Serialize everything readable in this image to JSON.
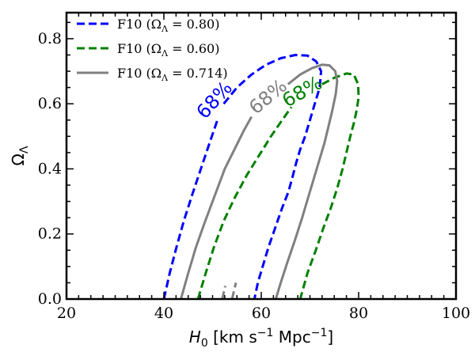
{
  "chart_data": {
    "type": "line",
    "title": "",
    "xlabel_main": "H",
    "xlabel_sub": "0",
    "xlabel_units_pre": " [km s",
    "xlabel_units_exp": "−1",
    "xlabel_units_mid": " Mpc",
    "xlabel_units_post": "]",
    "ylabel_main": "Ω",
    "ylabel_sub": "Λ",
    "xlim": [
      20,
      100
    ],
    "ylim": [
      0,
      0.88
    ],
    "xticks": [
      20,
      40,
      60,
      80,
      100
    ],
    "xtick_labels": [
      "20",
      "40",
      "60",
      "80",
      "100"
    ],
    "yticks": [
      0.0,
      0.2,
      0.4,
      0.6,
      0.8
    ],
    "ytick_labels": [
      "0.0",
      "0.2",
      "0.4",
      "0.6",
      "0.8"
    ],
    "legend_position": "top-left",
    "series": [
      {
        "name": "F10 (ΩΛ = 0.80)",
        "legend_pre": "F10 (Ω",
        "legend_sub": "Λ",
        "legend_post": " = 0.80)",
        "color": "#0000ff",
        "dash": "dashed",
        "contour_label": "68%",
        "contour_label_at": [
          50.5,
          0.61
        ],
        "contour_label_angle": -48,
        "segments": [
          [
            [
              40.0,
              0.0
            ],
            [
              41.2,
              0.08
            ],
            [
              42.6,
              0.16
            ],
            [
              44.1,
              0.24
            ],
            [
              45.8,
              0.32
            ],
            [
              47.6,
              0.4
            ],
            [
              49.4,
              0.48
            ],
            [
              51.0,
              0.55
            ]
          ],
          [
            [
              52.3,
              0.6
            ],
            [
              55.0,
              0.65
            ],
            [
              58.0,
              0.69
            ],
            [
              61.0,
              0.72
            ],
            [
              64.0,
              0.74
            ],
            [
              67.0,
              0.75
            ],
            [
              69.5,
              0.748
            ],
            [
              71.3,
              0.73
            ],
            [
              72.3,
              0.7
            ],
            [
              72.0,
              0.65
            ],
            [
              71.0,
              0.6
            ],
            [
              70.0,
              0.55
            ],
            [
              69.0,
              0.5
            ],
            [
              68.0,
              0.46
            ],
            [
              67.2,
              0.42
            ],
            [
              66.5,
              0.38
            ],
            [
              65.6,
              0.33
            ],
            [
              64.3,
              0.28
            ],
            [
              62.9,
              0.22
            ],
            [
              61.5,
              0.16
            ],
            [
              60.3,
              0.1
            ],
            [
              59.3,
              0.05
            ],
            [
              58.6,
              0.0
            ]
          ]
        ]
      },
      {
        "name": "F10 (ΩΛ = 0.60)",
        "legend_pre": "F10 (Ω",
        "legend_sub": "Λ",
        "legend_post": " = 0.60)",
        "color": "#008000",
        "dash": "dashed",
        "contour_label": "68%",
        "contour_label_at": [
          68.5,
          0.635
        ],
        "contour_label_angle": -30,
        "segments": [
          [
            [
              47.0,
              0.0
            ],
            [
              48.6,
              0.08
            ],
            [
              50.3,
              0.16
            ],
            [
              52.3,
              0.24
            ],
            [
              54.5,
              0.31
            ],
            [
              57.0,
              0.38
            ],
            [
              59.5,
              0.44
            ],
            [
              62.0,
              0.5
            ],
            [
              64.3,
              0.55
            ],
            [
              66.2,
              0.59
            ]
          ],
          [
            [
              72.5,
              0.66
            ],
            [
              75.0,
              0.68
            ],
            [
              77.5,
              0.693
            ],
            [
              79.0,
              0.69
            ],
            [
              79.9,
              0.66
            ],
            [
              80.0,
              0.62
            ],
            [
              79.6,
              0.58
            ],
            [
              79.0,
              0.54
            ],
            [
              78.3,
              0.5
            ],
            [
              77.5,
              0.45
            ],
            [
              76.7,
              0.4
            ],
            [
              75.6,
              0.34
            ],
            [
              74.3,
              0.28
            ],
            [
              72.8,
              0.22
            ],
            [
              71.2,
              0.15
            ],
            [
              69.5,
              0.08
            ],
            [
              68.0,
              0.0
            ]
          ]
        ]
      },
      {
        "name": "F10 (ΩΛ = 0.714)",
        "legend_pre": "F10 (Ω",
        "legend_sub": "Λ",
        "legend_post": " = 0.714)",
        "color": "#808080",
        "dash": "solid",
        "contour_label": "68%",
        "contour_label_at": [
          61.5,
          0.62
        ],
        "contour_label_angle": -40,
        "segments": [
          [
            [
              43.5,
              0.0
            ],
            [
              45.0,
              0.08
            ],
            [
              46.6,
              0.16
            ],
            [
              48.5,
              0.24
            ],
            [
              50.5,
              0.32
            ],
            [
              52.5,
              0.4
            ],
            [
              54.5,
              0.46
            ],
            [
              56.5,
              0.52
            ],
            [
              58.0,
              0.56
            ]
          ],
          [
            [
              65.5,
              0.66
            ],
            [
              68.0,
              0.69
            ],
            [
              70.5,
              0.71
            ],
            [
              72.5,
              0.72
            ],
            [
              74.0,
              0.718
            ],
            [
              75.2,
              0.7
            ],
            [
              75.6,
              0.67
            ],
            [
              75.3,
              0.63
            ],
            [
              74.6,
              0.58
            ],
            [
              73.8,
              0.53
            ],
            [
              73.0,
              0.48
            ],
            [
              72.0,
              0.43
            ],
            [
              70.8,
              0.37
            ],
            [
              69.6,
              0.31
            ],
            [
              68.4,
              0.25
            ],
            [
              66.9,
              0.18
            ],
            [
              65.3,
              0.11
            ],
            [
              64.0,
              0.05
            ],
            [
              63.0,
              0.0
            ]
          ]
        ]
      }
    ],
    "extra_segments": [
      {
        "color": "#808080",
        "dash": "dashed",
        "points": [
          [
            52.0,
            0.0
          ],
          [
            52.6,
            0.04
          ]
        ]
      },
      {
        "color": "#808080",
        "dash": "dashed",
        "points": [
          [
            54.0,
            0.0
          ],
          [
            54.8,
            0.05
          ]
        ]
      }
    ]
  }
}
